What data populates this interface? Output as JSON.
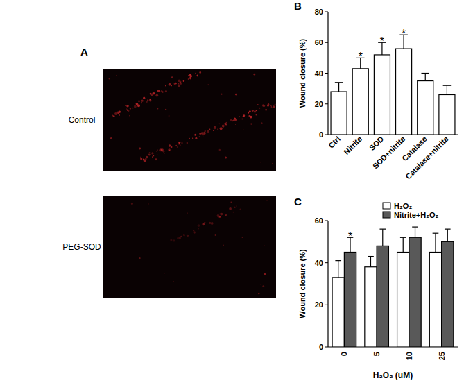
{
  "figure_panels": {
    "image_panel": {
      "label": "A",
      "images": [
        {
          "label": "Control"
        },
        {
          "label": "PEG-SOD"
        }
      ]
    }
  },
  "chart_data": [
    {
      "type": "bar",
      "title": "B",
      "ylabel": "Wound closure (%)",
      "categories": [
        "Ctrl",
        "Nitrite",
        "SOD",
        "SOD+nitrite",
        "Catalase",
        "Catalase+nitrite"
      ],
      "values": [
        28,
        43,
        52,
        56,
        35,
        26
      ],
      "errors": [
        6,
        7,
        8,
        9,
        5,
        6
      ],
      "significance": [
        null,
        "*",
        "*",
        "*",
        null,
        null
      ],
      "color": "#ffffff",
      "ylim": [
        0,
        80
      ],
      "yticks": [
        0,
        20,
        40,
        60,
        80
      ],
      "grid": false
    },
    {
      "type": "bar",
      "title": "C",
      "ylabel": "Wound closure (%)",
      "xlabel": "H₂O₂ (uM)",
      "categories": [
        "0",
        "5",
        "10",
        "25"
      ],
      "series": [
        {
          "name": "H₂O₂",
          "color": "#ffffff",
          "values": [
            33,
            38,
            45,
            45
          ],
          "errors": [
            8,
            5,
            7,
            9
          ],
          "significance": [
            null,
            null,
            null,
            null
          ]
        },
        {
          "name": "Nitrite+H₂O₂",
          "color": "#595959",
          "values": [
            45,
            48,
            52,
            50
          ],
          "errors": [
            7,
            8,
            5,
            6
          ],
          "significance": [
            "*",
            null,
            null,
            null
          ]
        }
      ],
      "legend": "upper right",
      "ylim": [
        0,
        60
      ],
      "yticks": [
        0,
        20,
        40,
        60
      ],
      "grid": false
    }
  ]
}
